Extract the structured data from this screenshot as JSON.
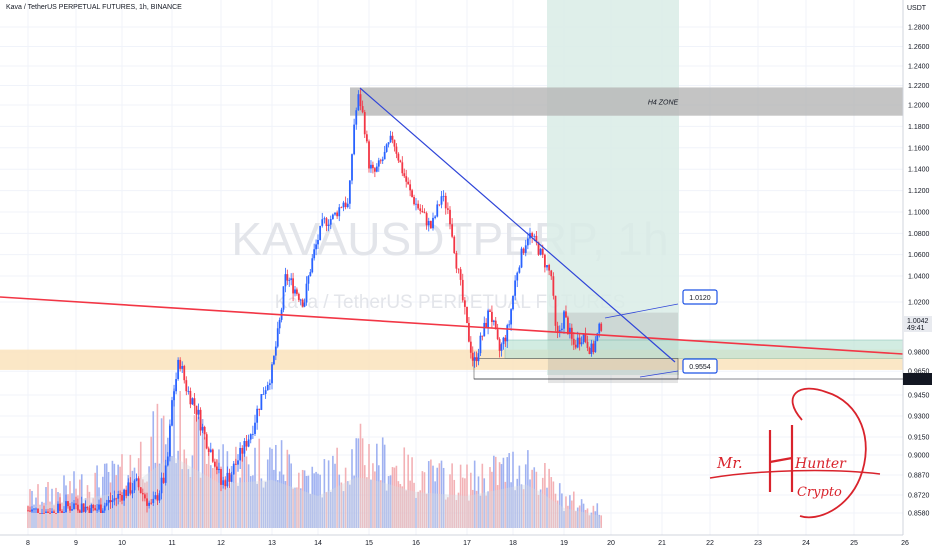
{
  "header": {
    "title": "Kava / TetherUS PERPETUAL FUTURES, 1h, BINANCE"
  },
  "watermark": {
    "main": "KAVAUSDTPERP, 1h",
    "sub": "Kava / TetherUS PERPETUAL FUTURES"
  },
  "colors": {
    "up": "#2962ff",
    "down": "#f23645",
    "volume_up": "#8fa5ee",
    "volume_down": "#f1a3a8",
    "trendline_red": "#f23645",
    "trendline_blue": "#2f45d8",
    "zone_gray": "#b5b5b5",
    "zone_orange": "#fbe4c0",
    "zone_green": "#d9ece6",
    "label_blue": "#1e53e5",
    "signature_red": "#d9232c"
  },
  "chart_data": {
    "type": "candlestick",
    "symbol": "Kava / TetherUS PERPETUAL FUTURES",
    "interval": "1h",
    "exchange": "BINANCE",
    "y_axis": {
      "unit": "USDT",
      "ticks": [
        "1.2800",
        "1.2600",
        "1.2400",
        "1.2200",
        "1.2000",
        "1.1800",
        "1.1600",
        "1.1400",
        "1.1200",
        "1.1000",
        "1.0800",
        "1.0600",
        "1.0400",
        "1.0200",
        "0.9800",
        "0.9650",
        "0.9450",
        "0.9300",
        "0.9150",
        "0.9000",
        "0.8870",
        "0.8720",
        "0.8580"
      ]
    },
    "x_axis": {
      "ticks": [
        "8",
        "9",
        "10",
        "11",
        "12",
        "13",
        "14",
        "15",
        "16",
        "17",
        "18",
        "19",
        "20",
        "21",
        "22",
        "23",
        "24",
        "25",
        "26"
      ]
    },
    "last_price": "1.0042",
    "last_price_sub": "49:41",
    "level_marked": "0.9589",
    "annotations": [
      {
        "text": "1.0120",
        "kind": "price-label"
      },
      {
        "text": "0.9554",
        "kind": "price-label"
      },
      {
        "text": "H4 ZONE",
        "kind": "zone-label"
      }
    ],
    "zones": [
      {
        "name": "H4 ZONE",
        "from": 1.19,
        "to": 1.218
      },
      {
        "name": "support-zone",
        "from": 0.966,
        "to": 0.982
      },
      {
        "name": "consolidation-box",
        "from": 0.9554,
        "to": 1.012
      },
      {
        "name": "target-box",
        "from": 0.975,
        "to": 0.99
      }
    ],
    "path": [
      [
        8.0,
        0.86
      ],
      [
        8.5,
        0.858
      ],
      [
        9.0,
        0.865
      ],
      [
        9.4,
        0.86
      ],
      [
        9.8,
        0.868
      ],
      [
        10.0,
        0.873
      ],
      [
        10.3,
        0.88
      ],
      [
        10.6,
        0.862
      ],
      [
        10.9,
        0.89
      ],
      [
        11.0,
        0.94
      ],
      [
        11.15,
        0.975
      ],
      [
        11.3,
        0.95
      ],
      [
        11.5,
        0.935
      ],
      [
        11.7,
        0.912
      ],
      [
        11.9,
        0.895
      ],
      [
        12.0,
        0.88
      ],
      [
        12.2,
        0.888
      ],
      [
        12.4,
        0.902
      ],
      [
        12.6,
        0.92
      ],
      [
        12.8,
        0.945
      ],
      [
        13.0,
        0.965
      ],
      [
        13.15,
        1.0
      ],
      [
        13.3,
        1.04
      ],
      [
        13.5,
        1.03
      ],
      [
        13.7,
        1.02
      ],
      [
        13.9,
        1.06
      ],
      [
        14.1,
        1.09
      ],
      [
        14.3,
        1.095
      ],
      [
        14.5,
        1.11
      ],
      [
        14.6,
        1.105
      ],
      [
        14.7,
        1.18
      ],
      [
        14.8,
        1.21
      ],
      [
        14.9,
        1.185
      ],
      [
        15.0,
        1.145
      ],
      [
        15.1,
        1.135
      ],
      [
        15.3,
        1.15
      ],
      [
        15.5,
        1.17
      ],
      [
        15.7,
        1.14
      ],
      [
        15.9,
        1.115
      ],
      [
        16.1,
        1.1
      ],
      [
        16.3,
        1.085
      ],
      [
        16.5,
        1.115
      ],
      [
        16.65,
        1.1
      ],
      [
        16.8,
        1.05
      ],
      [
        17.0,
        1.0
      ],
      [
        17.15,
        0.97
      ],
      [
        17.3,
        0.99
      ],
      [
        17.5,
        1.015
      ],
      [
        17.7,
        0.98
      ],
      [
        17.9,
        1.0
      ],
      [
        18.1,
        1.05
      ],
      [
        18.3,
        1.08
      ],
      [
        18.45,
        1.07
      ],
      [
        18.6,
        1.055
      ],
      [
        18.75,
        1.04
      ],
      [
        18.85,
        0.99
      ],
      [
        19.0,
        1.01
      ],
      [
        19.2,
        0.985
      ],
      [
        19.4,
        0.995
      ],
      [
        19.6,
        0.98
      ],
      [
        19.8,
        1.004
      ]
    ],
    "volume_levels": [
      [
        8.0,
        0.25
      ],
      [
        9.0,
        0.35
      ],
      [
        10.0,
        0.45
      ],
      [
        11.0,
        0.9
      ],
      [
        12.0,
        0.55
      ],
      [
        13.0,
        0.6
      ],
      [
        14.0,
        0.4
      ],
      [
        14.8,
        0.65
      ],
      [
        16.0,
        0.45
      ],
      [
        17.0,
        0.4
      ],
      [
        18.3,
        0.55
      ],
      [
        19.0,
        0.25
      ],
      [
        19.8,
        0.15
      ]
    ]
  },
  "signature": {
    "lines": [
      "Mr.",
      "Hunter",
      "Crypto"
    ]
  }
}
